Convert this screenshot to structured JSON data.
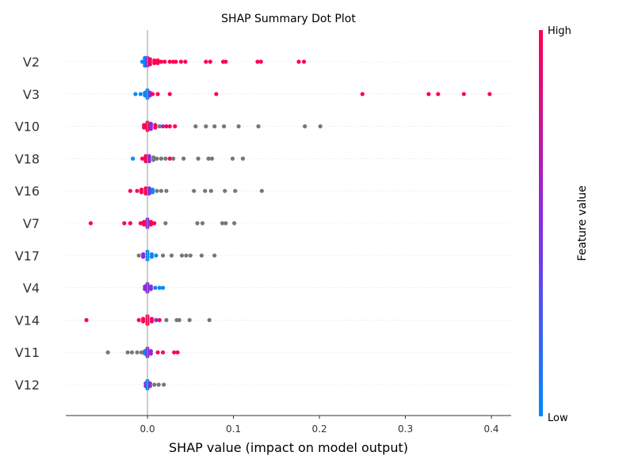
{
  "chart_data": {
    "type": "scatter",
    "title": "SHAP Summary Dot Plot",
    "xlabel": "SHAP value (impact on model output)",
    "xlim": [
      -0.095,
      0.423
    ],
    "xticks": [
      0.0,
      0.1,
      0.2,
      0.3,
      0.4
    ],
    "xtick_labels": [
      "0.0",
      "0.1",
      "0.2",
      "0.3",
      "0.4"
    ],
    "colorbar": {
      "label": "Feature value",
      "high": "High",
      "low": "Low",
      "high_color": "#ff0052",
      "mid_color": "#8a2be2",
      "low_color": "#008bfb"
    },
    "missing_color": "#777777",
    "grid": false,
    "features": [
      {
        "name": "V2",
        "points": [
          [
            -0.006,
            "b",
            1
          ],
          [
            -0.003,
            "b",
            4
          ],
          [
            0.0,
            "m",
            4
          ],
          [
            0.003,
            "r",
            3
          ],
          [
            0.008,
            "r",
            2
          ],
          [
            0.012,
            "r",
            2
          ],
          [
            0.016,
            "r",
            1
          ],
          [
            0.02,
            "r",
            1
          ],
          [
            0.026,
            "r",
            1
          ],
          [
            0.03,
            "r",
            1
          ],
          [
            0.033,
            "r",
            1
          ],
          [
            0.039,
            "r",
            1
          ],
          [
            0.044,
            "r",
            1
          ],
          [
            0.068,
            "r",
            1
          ],
          [
            0.073,
            "r",
            1
          ],
          [
            0.088,
            "r",
            1
          ],
          [
            0.091,
            "r",
            1
          ],
          [
            0.128,
            "r",
            1
          ],
          [
            0.132,
            "r",
            1
          ],
          [
            0.176,
            "r",
            1
          ],
          [
            0.182,
            "r",
            1
          ]
        ]
      },
      {
        "name": "V3",
        "points": [
          [
            -0.014,
            "b",
            1
          ],
          [
            -0.008,
            "b",
            1
          ],
          [
            -0.003,
            "b",
            2
          ],
          [
            0.0,
            "b",
            4
          ],
          [
            0.003,
            "m",
            2
          ],
          [
            0.006,
            "r",
            1
          ],
          [
            0.012,
            "r",
            1
          ],
          [
            0.026,
            "r",
            1
          ],
          [
            0.08,
            "r",
            1
          ],
          [
            0.25,
            "r",
            1
          ],
          [
            0.327,
            "r",
            1
          ],
          [
            0.338,
            "r",
            1
          ],
          [
            0.368,
            "r",
            1
          ],
          [
            0.398,
            "r",
            1
          ]
        ]
      },
      {
        "name": "V10",
        "points": [
          [
            -0.004,
            "r",
            2
          ],
          [
            0.0,
            "r",
            4
          ],
          [
            0.004,
            "m",
            3
          ],
          [
            0.009,
            "r",
            2
          ],
          [
            0.014,
            "g",
            1
          ],
          [
            0.018,
            "m",
            1
          ],
          [
            0.022,
            "r",
            1
          ],
          [
            0.026,
            "r",
            1
          ],
          [
            0.032,
            "r",
            1
          ],
          [
            0.056,
            "g",
            1
          ],
          [
            0.068,
            "g",
            1
          ],
          [
            0.078,
            "g",
            1
          ],
          [
            0.089,
            "g",
            1
          ],
          [
            0.106,
            "g",
            1
          ],
          [
            0.129,
            "g",
            1
          ],
          [
            0.183,
            "g",
            1
          ],
          [
            0.201,
            "g",
            1
          ]
        ]
      },
      {
        "name": "V18",
        "points": [
          [
            -0.017,
            "b",
            1
          ],
          [
            -0.006,
            "r",
            1
          ],
          [
            -0.002,
            "r",
            3
          ],
          [
            0.002,
            "m",
            3
          ],
          [
            0.007,
            "g",
            2
          ],
          [
            0.011,
            "g",
            1
          ],
          [
            0.016,
            "g",
            1
          ],
          [
            0.021,
            "g",
            1
          ],
          [
            0.026,
            "r",
            1
          ],
          [
            0.03,
            "g",
            1
          ],
          [
            0.042,
            "g",
            1
          ],
          [
            0.059,
            "g",
            1
          ],
          [
            0.071,
            "g",
            1
          ],
          [
            0.075,
            "g",
            1
          ],
          [
            0.099,
            "g",
            1
          ],
          [
            0.111,
            "g",
            1
          ]
        ]
      },
      {
        "name": "V16",
        "points": [
          [
            -0.02,
            "r",
            1
          ],
          [
            -0.012,
            "r",
            1
          ],
          [
            -0.007,
            "r",
            2
          ],
          [
            -0.002,
            "r",
            3
          ],
          [
            0.002,
            "m",
            3
          ],
          [
            0.006,
            "b",
            2
          ],
          [
            0.011,
            "g",
            1
          ],
          [
            0.016,
            "g",
            1
          ],
          [
            0.022,
            "g",
            1
          ],
          [
            0.054,
            "g",
            1
          ],
          [
            0.067,
            "g",
            1
          ],
          [
            0.074,
            "g",
            1
          ],
          [
            0.09,
            "g",
            1
          ],
          [
            0.102,
            "g",
            1
          ],
          [
            0.133,
            "g",
            1
          ]
        ]
      },
      {
        "name": "V7",
        "points": [
          [
            -0.066,
            "r",
            1
          ],
          [
            -0.027,
            "r",
            1
          ],
          [
            -0.02,
            "r",
            1
          ],
          [
            -0.008,
            "r",
            1
          ],
          [
            -0.004,
            "r",
            2
          ],
          [
            0.0,
            "m",
            4
          ],
          [
            0.004,
            "r",
            2
          ],
          [
            0.008,
            "r",
            1
          ],
          [
            0.021,
            "g",
            1
          ],
          [
            0.058,
            "g",
            1
          ],
          [
            0.064,
            "g",
            1
          ],
          [
            0.087,
            "g",
            1
          ],
          [
            0.091,
            "g",
            1
          ],
          [
            0.101,
            "g",
            1
          ]
        ]
      },
      {
        "name": "V17",
        "points": [
          [
            -0.01,
            "g",
            1
          ],
          [
            -0.005,
            "m",
            2
          ],
          [
            0.0,
            "b",
            4
          ],
          [
            0.005,
            "b",
            2
          ],
          [
            0.01,
            "b",
            1
          ],
          [
            0.018,
            "g",
            1
          ],
          [
            0.028,
            "g",
            1
          ],
          [
            0.04,
            "g",
            1
          ],
          [
            0.045,
            "g",
            1
          ],
          [
            0.05,
            "g",
            1
          ],
          [
            0.063,
            "g",
            1
          ],
          [
            0.078,
            "g",
            1
          ]
        ]
      },
      {
        "name": "V4",
        "points": [
          [
            -0.003,
            "m",
            2
          ],
          [
            0.0,
            "m",
            4
          ],
          [
            0.004,
            "m",
            2
          ],
          [
            0.009,
            "b",
            1
          ],
          [
            0.014,
            "b",
            1
          ],
          [
            0.018,
            "b",
            1
          ]
        ]
      },
      {
        "name": "V14",
        "points": [
          [
            -0.071,
            "r",
            1
          ],
          [
            -0.01,
            "r",
            1
          ],
          [
            -0.005,
            "r",
            2
          ],
          [
            0.0,
            "r",
            4
          ],
          [
            0.005,
            "r",
            2
          ],
          [
            0.01,
            "m",
            1
          ],
          [
            0.014,
            "r",
            1
          ],
          [
            0.022,
            "g",
            1
          ],
          [
            0.034,
            "g",
            1
          ],
          [
            0.037,
            "g",
            1
          ],
          [
            0.049,
            "g",
            1
          ],
          [
            0.072,
            "g",
            1
          ]
        ]
      },
      {
        "name": "V11",
        "points": [
          [
            -0.046,
            "g",
            1
          ],
          [
            -0.023,
            "g",
            1
          ],
          [
            -0.018,
            "g",
            1
          ],
          [
            -0.012,
            "g",
            1
          ],
          [
            -0.007,
            "g",
            1
          ],
          [
            -0.003,
            "b",
            2
          ],
          [
            0.0,
            "m",
            4
          ],
          [
            0.004,
            "m",
            2
          ],
          [
            0.012,
            "r",
            1
          ],
          [
            0.018,
            "r",
            1
          ],
          [
            0.031,
            "r",
            1
          ],
          [
            0.035,
            "r",
            1
          ]
        ]
      },
      {
        "name": "V12",
        "points": [
          [
            -0.002,
            "m",
            2
          ],
          [
            0.0,
            "b",
            4
          ],
          [
            0.003,
            "m",
            2
          ],
          [
            0.008,
            "g",
            1
          ],
          [
            0.013,
            "g",
            1
          ],
          [
            0.019,
            "g",
            1
          ]
        ]
      }
    ]
  }
}
